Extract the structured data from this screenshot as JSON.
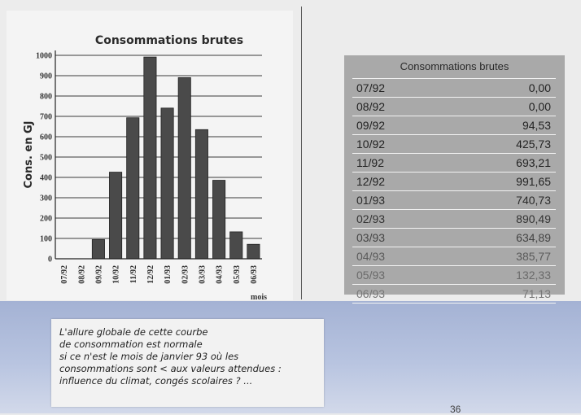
{
  "chart_data": {
    "type": "bar",
    "title": "Consommations brutes",
    "ylabel": "Cons. en GJ",
    "xlabel": "mois",
    "ylim": [
      0,
      1000
    ],
    "yticks": [
      0,
      100,
      200,
      300,
      400,
      500,
      600,
      700,
      800,
      900,
      1000
    ],
    "categories": [
      "07/92",
      "08/92",
      "09/92",
      "10/92",
      "11/92",
      "12/92",
      "01/93",
      "02/93",
      "03/93",
      "04/93",
      "05/93",
      "06/93"
    ],
    "values": [
      0,
      0,
      94.53,
      425.73,
      693.21,
      991.65,
      740.73,
      890.49,
      634.89,
      385.77,
      132.33,
      71.13
    ],
    "grid": true
  },
  "table": {
    "header": "Consommations brutes",
    "rows": [
      {
        "month": "07/92",
        "value": "0,00"
      },
      {
        "month": "08/92",
        "value": "0,00"
      },
      {
        "month": "09/92",
        "value": "94,53"
      },
      {
        "month": "10/92",
        "value": "425,73"
      },
      {
        "month": "11/92",
        "value": "693,21"
      },
      {
        "month": "12/92",
        "value": "991,65"
      },
      {
        "month": "01/93",
        "value": "740,73"
      },
      {
        "month": "02/93",
        "value": "890,49"
      },
      {
        "month": "03/93",
        "value": "634,89"
      },
      {
        "month": "04/93",
        "value": "385,77"
      },
      {
        "month": "05/93",
        "value": "132,33"
      },
      {
        "month": "06/93",
        "value": "71,13"
      }
    ]
  },
  "comment": {
    "lines": [
      "L'allure globale de cette courbe",
      "de consommation est normale",
      "si ce n'est le mois de janvier 93 où les",
      "consommations sont < aux valeurs attendues :",
      "influence du climat, congés scolaires ? ..."
    ]
  },
  "page_number": "36"
}
